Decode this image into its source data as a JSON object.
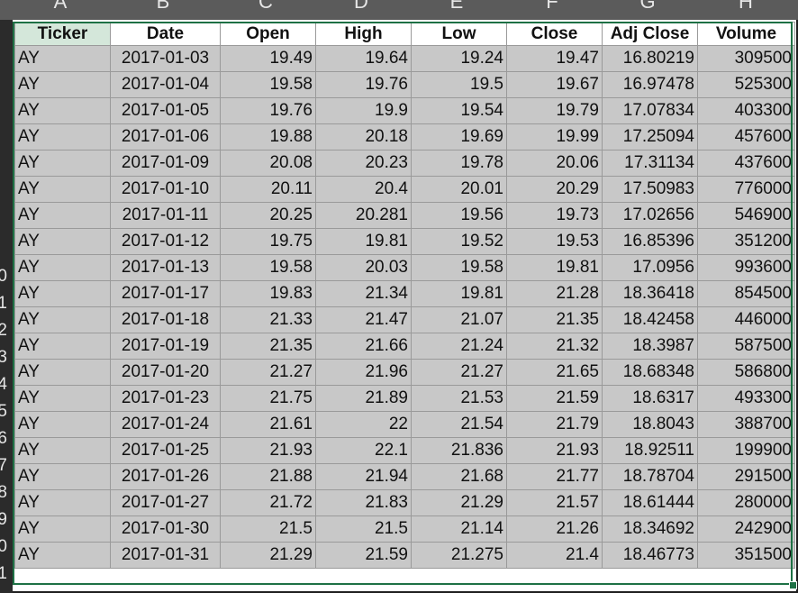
{
  "columns": [
    "A",
    "B",
    "C",
    "D",
    "E",
    "F",
    "G",
    "H"
  ],
  "row_numbers": [
    "",
    "",
    "",
    "",
    "",
    "",
    "",
    "",
    "0",
    "1",
    "2",
    "3",
    "4",
    "5",
    "6",
    "7",
    "8",
    "9",
    "0",
    "1"
  ],
  "headers": [
    "Ticker",
    "Date",
    "Open",
    "High",
    "Low",
    "Close",
    "Adj Close",
    "Volume"
  ],
  "rows": [
    [
      "AY",
      "2017-01-03",
      "19.49",
      "19.64",
      "19.24",
      "19.47",
      "16.80219",
      "309500"
    ],
    [
      "AY",
      "2017-01-04",
      "19.58",
      "19.76",
      "19.5",
      "19.67",
      "16.97478",
      "525300"
    ],
    [
      "AY",
      "2017-01-05",
      "19.76",
      "19.9",
      "19.54",
      "19.79",
      "17.07834",
      "403300"
    ],
    [
      "AY",
      "2017-01-06",
      "19.88",
      "20.18",
      "19.69",
      "19.99",
      "17.25094",
      "457600"
    ],
    [
      "AY",
      "2017-01-09",
      "20.08",
      "20.23",
      "19.78",
      "20.06",
      "17.31134",
      "437600"
    ],
    [
      "AY",
      "2017-01-10",
      "20.11",
      "20.4",
      "20.01",
      "20.29",
      "17.50983",
      "776000"
    ],
    [
      "AY",
      "2017-01-11",
      "20.25",
      "20.281",
      "19.56",
      "19.73",
      "17.02656",
      "546900"
    ],
    [
      "AY",
      "2017-01-12",
      "19.75",
      "19.81",
      "19.52",
      "19.53",
      "16.85396",
      "351200"
    ],
    [
      "AY",
      "2017-01-13",
      "19.58",
      "20.03",
      "19.58",
      "19.81",
      "17.0956",
      "993600"
    ],
    [
      "AY",
      "2017-01-17",
      "19.83",
      "21.34",
      "19.81",
      "21.28",
      "18.36418",
      "854500"
    ],
    [
      "AY",
      "2017-01-18",
      "21.33",
      "21.47",
      "21.07",
      "21.35",
      "18.42458",
      "446000"
    ],
    [
      "AY",
      "2017-01-19",
      "21.35",
      "21.66",
      "21.24",
      "21.32",
      "18.3987",
      "587500"
    ],
    [
      "AY",
      "2017-01-20",
      "21.27",
      "21.96",
      "21.27",
      "21.65",
      "18.68348",
      "586800"
    ],
    [
      "AY",
      "2017-01-23",
      "21.75",
      "21.89",
      "21.53",
      "21.59",
      "18.6317",
      "493300"
    ],
    [
      "AY",
      "2017-01-24",
      "21.61",
      "22",
      "21.54",
      "21.79",
      "18.8043",
      "388700"
    ],
    [
      "AY",
      "2017-01-25",
      "21.93",
      "22.1",
      "21.836",
      "21.93",
      "18.92511",
      "199900"
    ],
    [
      "AY",
      "2017-01-26",
      "21.88",
      "21.94",
      "21.68",
      "21.77",
      "18.78704",
      "291500"
    ],
    [
      "AY",
      "2017-01-27",
      "21.72",
      "21.83",
      "21.29",
      "21.57",
      "18.61444",
      "280000"
    ],
    [
      "AY",
      "2017-01-30",
      "21.5",
      "21.5",
      "21.14",
      "21.26",
      "18.34692",
      "242900"
    ],
    [
      "AY",
      "2017-01-31",
      "21.29",
      "21.59",
      "21.275",
      "21.4",
      "18.46773",
      "351500"
    ]
  ]
}
